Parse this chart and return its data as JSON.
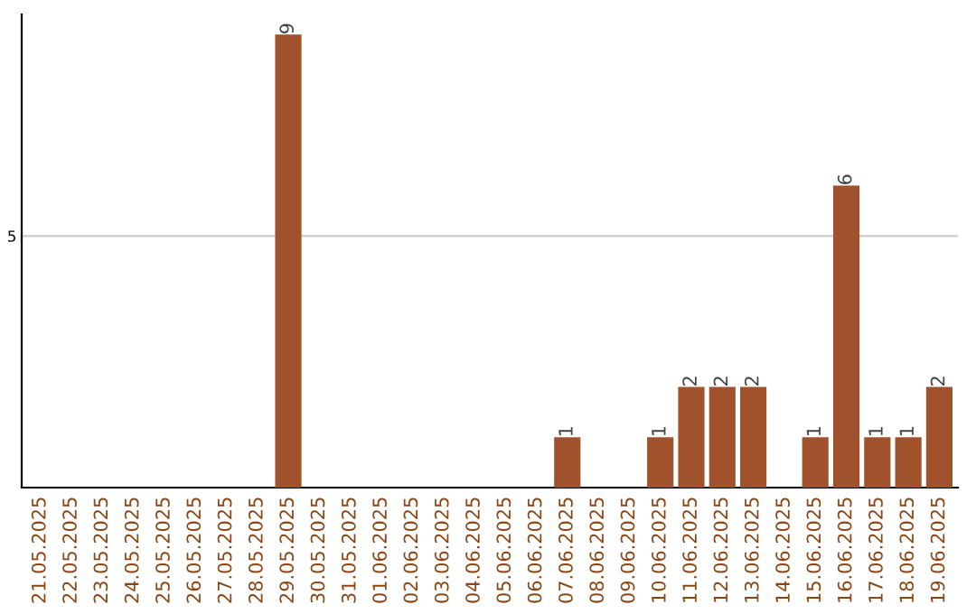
{
  "chart_data": {
    "type": "bar",
    "categories": [
      "21.05.2025",
      "22.05.2025",
      "23.05.2025",
      "24.05.2025",
      "25.05.2025",
      "26.05.2025",
      "27.05.2025",
      "28.05.2025",
      "29.05.2025",
      "30.05.2025",
      "31.05.2025",
      "01.06.2025",
      "02.06.2025",
      "03.06.2025",
      "04.06.2025",
      "05.06.2025",
      "06.06.2025",
      "07.06.2025",
      "08.06.2025",
      "09.06.2025",
      "10.06.2025",
      "11.06.2025",
      "12.06.2025",
      "13.06.2025",
      "14.06.2025",
      "15.06.2025",
      "16.06.2025",
      "17.06.2025",
      "18.06.2025",
      "19.06.2025"
    ],
    "values": [
      0,
      0,
      0,
      0,
      0,
      0,
      0,
      0,
      9,
      0,
      0,
      0,
      0,
      0,
      0,
      0,
      0,
      1,
      0,
      0,
      1,
      2,
      2,
      2,
      0,
      1,
      6,
      1,
      1,
      2
    ],
    "color": "#a0522d",
    "value_labels": [
      null,
      null,
      null,
      null,
      null,
      null,
      null,
      null,
      "9",
      null,
      null,
      null,
      null,
      null,
      null,
      null,
      null,
      "1",
      null,
      null,
      "1",
      "2",
      "2",
      "2",
      null,
      "1",
      "6",
      "1",
      "1",
      "2"
    ],
    "ylim": [
      0,
      9.4
    ],
    "yticks": [
      5
    ],
    "grid": "y"
  }
}
